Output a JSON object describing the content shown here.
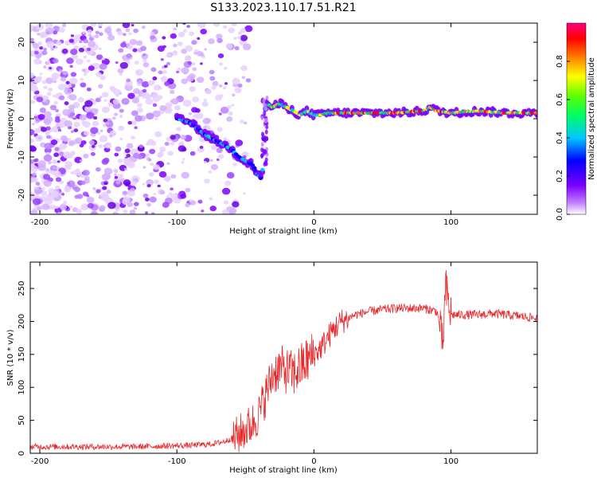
{
  "title": "S133.2023.110.17.51.R21",
  "chart_data": [
    {
      "type": "heatmap",
      "xlabel": "Height of straight line (km)",
      "ylabel": "Frequency (Hz)",
      "xlim": [
        -207,
        163
      ],
      "ylim": [
        -25,
        25
      ],
      "x_ticks": [
        -200,
        -100,
        0,
        100
      ],
      "y_ticks": [
        -20,
        -10,
        0,
        10,
        20
      ],
      "colorbar": {
        "label": "Normalized spectral amplitude",
        "range": [
          0,
          1
        ],
        "ticks": [
          0.0,
          0.2,
          0.4,
          0.6,
          0.8
        ]
      },
      "ridge": {
        "x": [
          -100,
          -90,
          -80,
          -70,
          -60,
          -55,
          -50,
          -45,
          -42,
          -38,
          -35,
          -30,
          -25,
          -20,
          -15,
          -10,
          -5,
          0,
          5,
          10,
          20,
          40,
          60,
          80,
          85,
          90,
          100,
          120,
          140,
          163
        ],
        "y": [
          0,
          -1,
          -4,
          -6,
          -8,
          -10,
          -11,
          -12,
          -14,
          -16,
          4,
          3,
          4,
          3,
          2,
          1,
          2,
          1,
          1,
          1.5,
          1.5,
          1.5,
          1.5,
          2,
          3,
          2,
          1.5,
          2,
          1.5,
          1.5
        ]
      }
    },
    {
      "type": "line",
      "xlabel": "Height of straight line (km)",
      "ylabel": "SNR (10 * v/v)",
      "xlim": [
        -207,
        163
      ],
      "ylim": [
        0,
        290
      ],
      "x_ticks": [
        -200,
        -100,
        0,
        100
      ],
      "y_ticks": [
        0,
        50,
        100,
        150,
        200,
        250
      ],
      "color": "#e8282a",
      "x": [
        -207,
        -190,
        -170,
        -150,
        -130,
        -110,
        -90,
        -75,
        -65,
        -55,
        -45,
        -40,
        -35,
        -30,
        -25,
        -20,
        -15,
        -10,
        -5,
        0,
        5,
        10,
        15,
        20,
        25,
        30,
        40,
        50,
        60,
        70,
        80,
        90,
        94,
        96,
        98,
        100,
        110,
        120,
        130,
        140,
        150,
        163
      ],
      "y": [
        10,
        10,
        10,
        10,
        10,
        11,
        12,
        14,
        18,
        28,
        45,
        60,
        90,
        120,
        130,
        125,
        120,
        130,
        140,
        150,
        160,
        175,
        190,
        200,
        205,
        210,
        215,
        218,
        220,
        220,
        220,
        215,
        160,
        250,
        230,
        210,
        210,
        210,
        212,
        210,
        208,
        205
      ]
    }
  ]
}
